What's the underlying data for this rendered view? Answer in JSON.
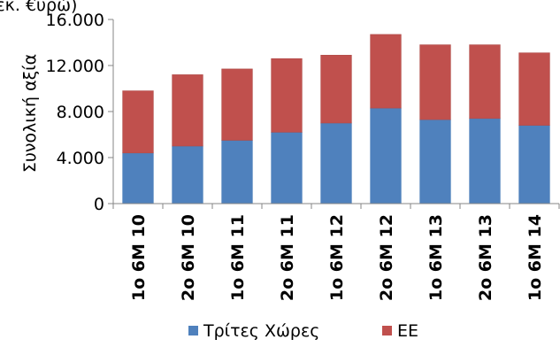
{
  "chart_data": {
    "type": "bar",
    "stacked": true,
    "top_note": "(εκ. €υρώ)",
    "ylabel": "Συνολική αξία",
    "xlabel": "",
    "ylim": [
      0,
      16000
    ],
    "yticks": [
      0,
      4000,
      8000,
      12000,
      16000
    ],
    "ytick_labels": [
      "0",
      "4.000",
      "8.000",
      "12.000",
      "16.000"
    ],
    "categories": [
      "1o 6M 10",
      "2o 6M 10",
      "1o 6M 11",
      "2o 6M 11",
      "1o 6M 12",
      "2o 6M 12",
      "1o 6M 13",
      "2o 6M 13",
      "1o 6M 14"
    ],
    "series": [
      {
        "name": "Τρίτες Χώρες",
        "color": "#4F81BD",
        "values": [
          4400,
          5000,
          5500,
          6200,
          7000,
          8300,
          7300,
          7400,
          6800
        ]
      },
      {
        "name": "ΕΕ",
        "color": "#C0504D",
        "values": [
          5400,
          6200,
          6200,
          6400,
          5900,
          6400,
          6500,
          6400,
          6300
        ]
      }
    ],
    "legend_position": "bottom",
    "grid": false
  }
}
